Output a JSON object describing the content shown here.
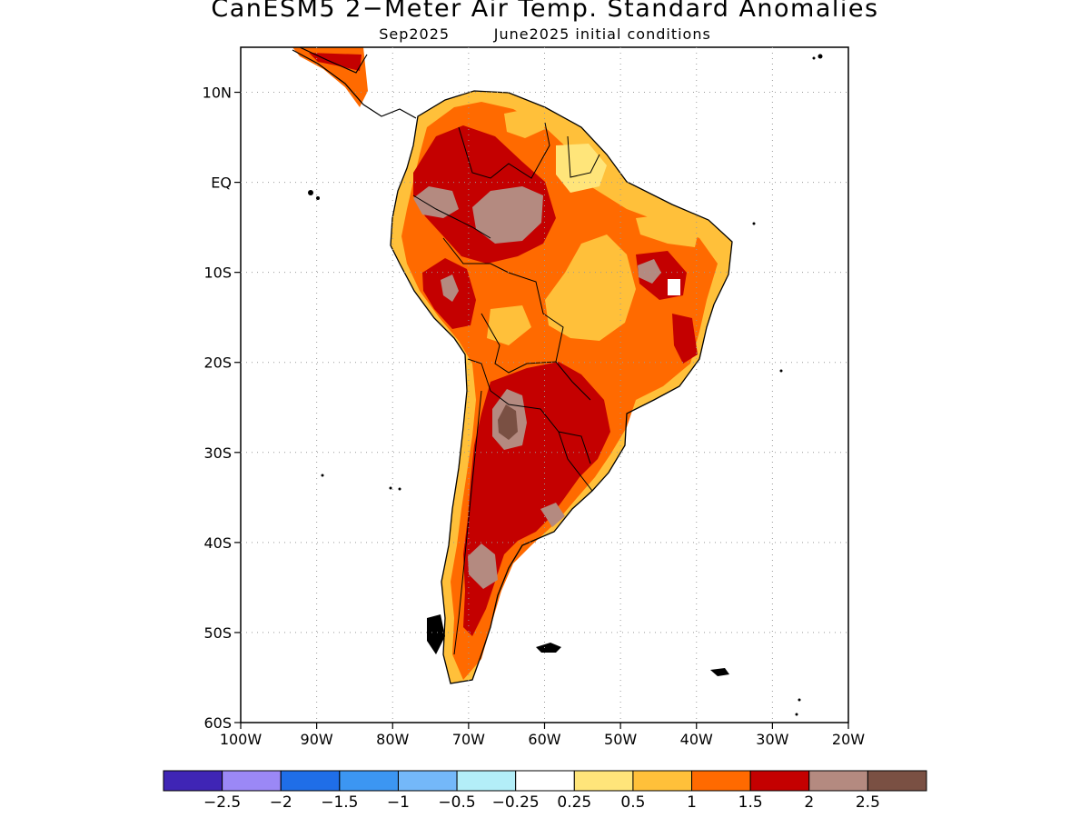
{
  "title": "CanESM5 2−Meter Air Temp. Standard Anomalies",
  "subtitle": "Sep2025        June2025 initial conditions",
  "map": {
    "region": "South America",
    "lon_range": [
      -100,
      -20
    ],
    "lat_range": [
      -60,
      15
    ],
    "gridlines": "dotted",
    "lat_ticks": [
      "10N",
      "EQ",
      "10S",
      "20S",
      "30S",
      "40S",
      "50S",
      "60S"
    ],
    "lon_ticks": [
      "100W",
      "90W",
      "80W",
      "70W",
      "60W",
      "50W",
      "40W",
      "30W",
      "20W"
    ]
  },
  "colorbar": {
    "colors": [
      "#3f25b5",
      "#9b88f6",
      "#1f6ee8",
      "#3c96f2",
      "#74b8f9",
      "#b3eef8",
      "#ffffff",
      "#ffe57a",
      "#ffc03a",
      "#ff6a00",
      "#c40000",
      "#b48a80",
      "#7a5043"
    ],
    "labels": [
      "−2.5",
      "−2",
      "−1.5",
      "−1",
      "−0.5",
      "−0.25",
      "0.25",
      "0.5",
      "1",
      "1.5",
      "2",
      "2.5"
    ]
  }
}
